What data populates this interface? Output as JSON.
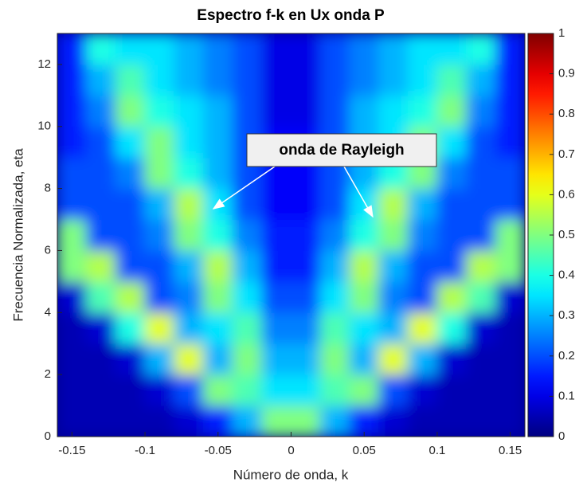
{
  "chart_data": {
    "type": "heatmap",
    "title": "Espectro f-k en Ux onda P",
    "x_label": "Número de onda, k",
    "y_label": "Frecuencia Normalizada, eta",
    "annotation": "onda de Rayleigh",
    "colormap": "jet",
    "x": [
      -0.15,
      -0.13,
      -0.11,
      -0.09,
      -0.07,
      -0.05,
      -0.03,
      -0.01,
      0.01,
      0.03,
      0.05,
      0.07,
      0.09,
      0.11,
      0.13,
      0.15
    ],
    "y": [
      0.5,
      1.5,
      2.5,
      3.5,
      4.5,
      5.5,
      6.5,
      7.5,
      8.5,
      9.5,
      10.5,
      11.5,
      12.5
    ],
    "values": [
      [
        0.05,
        0.05,
        0.05,
        0.05,
        0.08,
        0.15,
        0.3,
        0.5,
        0.5,
        0.3,
        0.15,
        0.08,
        0.05,
        0.05,
        0.05,
        0.05
      ],
      [
        0.05,
        0.05,
        0.05,
        0.08,
        0.2,
        0.5,
        0.45,
        0.35,
        0.35,
        0.45,
        0.5,
        0.2,
        0.08,
        0.05,
        0.05,
        0.05
      ],
      [
        0.05,
        0.05,
        0.08,
        0.3,
        0.6,
        0.3,
        0.5,
        0.3,
        0.3,
        0.5,
        0.3,
        0.6,
        0.3,
        0.08,
        0.05,
        0.05
      ],
      [
        0.05,
        0.08,
        0.4,
        0.6,
        0.3,
        0.35,
        0.45,
        0.25,
        0.25,
        0.45,
        0.35,
        0.3,
        0.6,
        0.4,
        0.08,
        0.05
      ],
      [
        0.08,
        0.45,
        0.55,
        0.2,
        0.25,
        0.5,
        0.35,
        0.2,
        0.2,
        0.35,
        0.5,
        0.25,
        0.2,
        0.55,
        0.45,
        0.08
      ],
      [
        0.5,
        0.55,
        0.2,
        0.2,
        0.3,
        0.55,
        0.3,
        0.15,
        0.15,
        0.3,
        0.55,
        0.3,
        0.2,
        0.2,
        0.55,
        0.5
      ],
      [
        0.5,
        0.2,
        0.2,
        0.25,
        0.5,
        0.4,
        0.25,
        0.15,
        0.15,
        0.25,
        0.4,
        0.5,
        0.25,
        0.2,
        0.2,
        0.5
      ],
      [
        0.2,
        0.2,
        0.2,
        0.3,
        0.55,
        0.35,
        0.2,
        0.12,
        0.12,
        0.2,
        0.35,
        0.55,
        0.3,
        0.2,
        0.2,
        0.2
      ],
      [
        0.2,
        0.2,
        0.25,
        0.5,
        0.4,
        0.3,
        0.2,
        0.12,
        0.12,
        0.2,
        0.3,
        0.4,
        0.5,
        0.25,
        0.2,
        0.2
      ],
      [
        0.15,
        0.2,
        0.35,
        0.5,
        0.35,
        0.3,
        0.2,
        0.12,
        0.12,
        0.2,
        0.3,
        0.35,
        0.5,
        0.35,
        0.2,
        0.15
      ],
      [
        0.15,
        0.25,
        0.5,
        0.4,
        0.35,
        0.3,
        0.2,
        0.1,
        0.1,
        0.2,
        0.3,
        0.35,
        0.4,
        0.5,
        0.25,
        0.15
      ],
      [
        0.15,
        0.3,
        0.45,
        0.35,
        0.3,
        0.25,
        0.2,
        0.1,
        0.1,
        0.2,
        0.25,
        0.3,
        0.35,
        0.45,
        0.3,
        0.15
      ],
      [
        0.15,
        0.4,
        0.35,
        0.35,
        0.3,
        0.25,
        0.2,
        0.1,
        0.1,
        0.2,
        0.25,
        0.3,
        0.35,
        0.35,
        0.4,
        0.15
      ]
    ],
    "xlim": [
      -0.16,
      0.16
    ],
    "ylim": [
      0,
      13
    ],
    "xticks": [
      -0.15,
      -0.1,
      -0.05,
      0,
      0.05,
      0.1,
      0.15
    ],
    "yticks": [
      0,
      2,
      4,
      6,
      8,
      10,
      12
    ],
    "clim": [
      0,
      1
    ],
    "cticks": [
      0,
      0.1,
      0.2,
      0.3,
      0.4,
      0.5,
      0.6,
      0.7,
      0.8,
      0.9,
      1
    ]
  }
}
